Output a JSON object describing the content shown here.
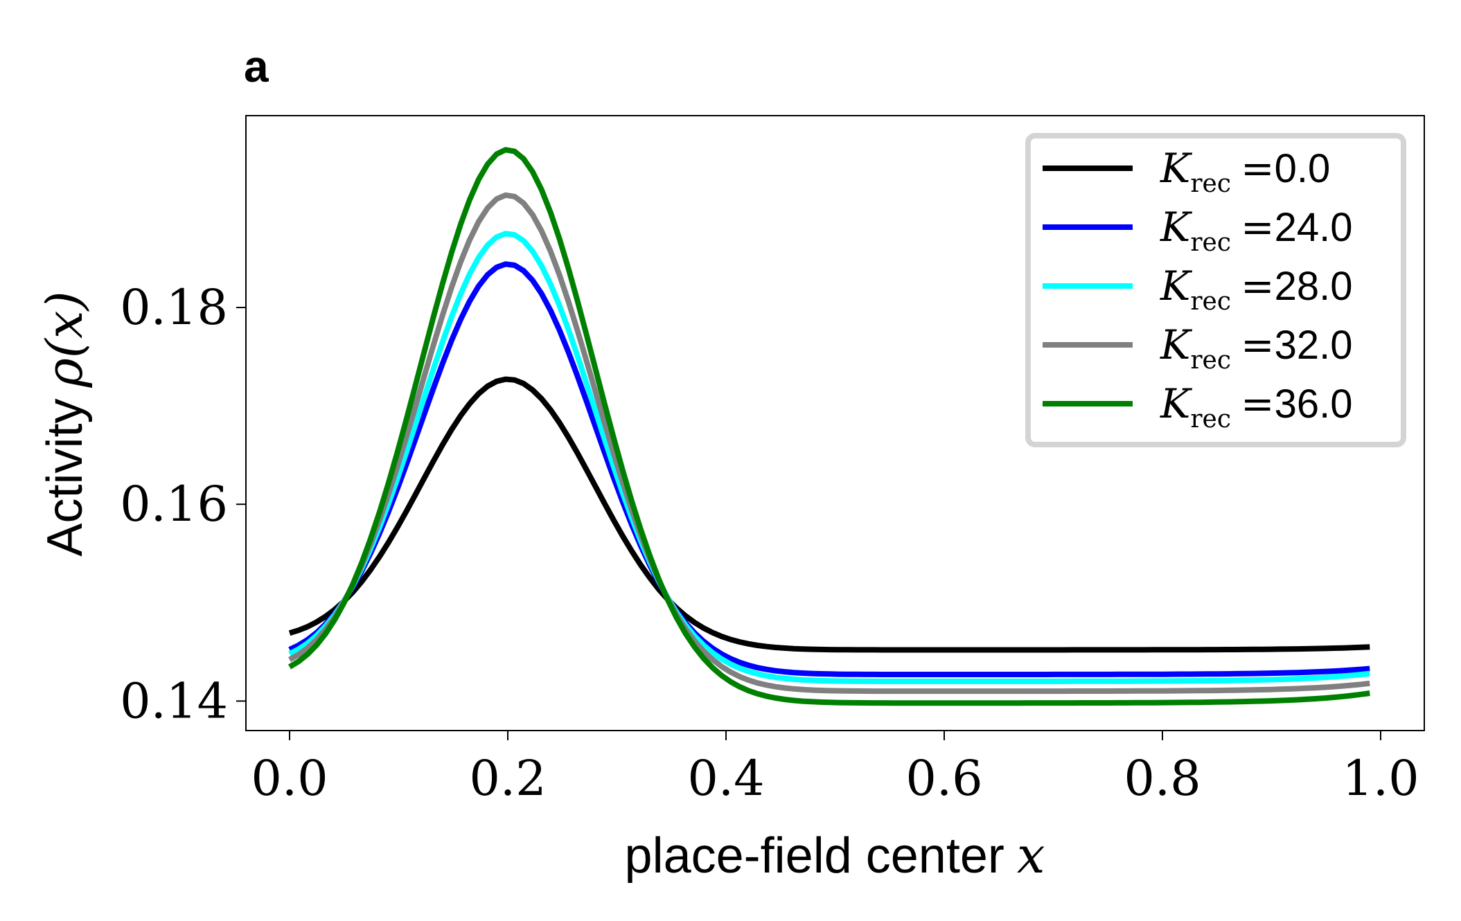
{
  "panel_label": "a",
  "chart_data": {
    "type": "line",
    "xlabel": "place-field center",
    "xlabel_var": "x",
    "ylabel": "Activity",
    "ylabel_var": "ρ(x)",
    "xlim": [
      -0.04,
      1.04
    ],
    "ylim": [
      0.137,
      0.1995
    ],
    "xticks": [
      0.0,
      0.2,
      0.4,
      0.6,
      0.8,
      1.0
    ],
    "xtick_labels": [
      "0.0",
      "0.2",
      "0.4",
      "0.6",
      "0.8",
      "1.0"
    ],
    "yticks": [
      0.14,
      0.16,
      0.18
    ],
    "ytick_labels": [
      "0.14",
      "0.16",
      "0.18"
    ],
    "grid": false,
    "legend_position": "top-right",
    "model": {
      "center": 0.2,
      "sigma": 0.08,
      "x_min": 0.0,
      "x_max": 0.99
    },
    "series": [
      {
        "name": "0.0",
        "color": "#000000",
        "baseline": 0.1452,
        "peak": 0.1727,
        "start": 0.1457,
        "end": 0.1455
      },
      {
        "name": "24.0",
        "color": "#0000ff",
        "baseline": 0.1427,
        "peak": 0.1844,
        "start": 0.1434,
        "end": 0.1433
      },
      {
        "name": "28.0",
        "color": "#00ffff",
        "baseline": 0.142,
        "peak": 0.1875,
        "start": 0.1428,
        "end": 0.1428
      },
      {
        "name": "32.0",
        "color": "#808080",
        "baseline": 0.141,
        "peak": 0.1914,
        "start": 0.142,
        "end": 0.1418
      },
      {
        "name": "36.0",
        "color": "#008000",
        "baseline": 0.1398,
        "peak": 0.196,
        "start": 0.141,
        "end": 0.1408
      }
    ],
    "legend": {
      "k_symbol": "K",
      "k_subscript": "rec",
      "equals": "="
    }
  }
}
